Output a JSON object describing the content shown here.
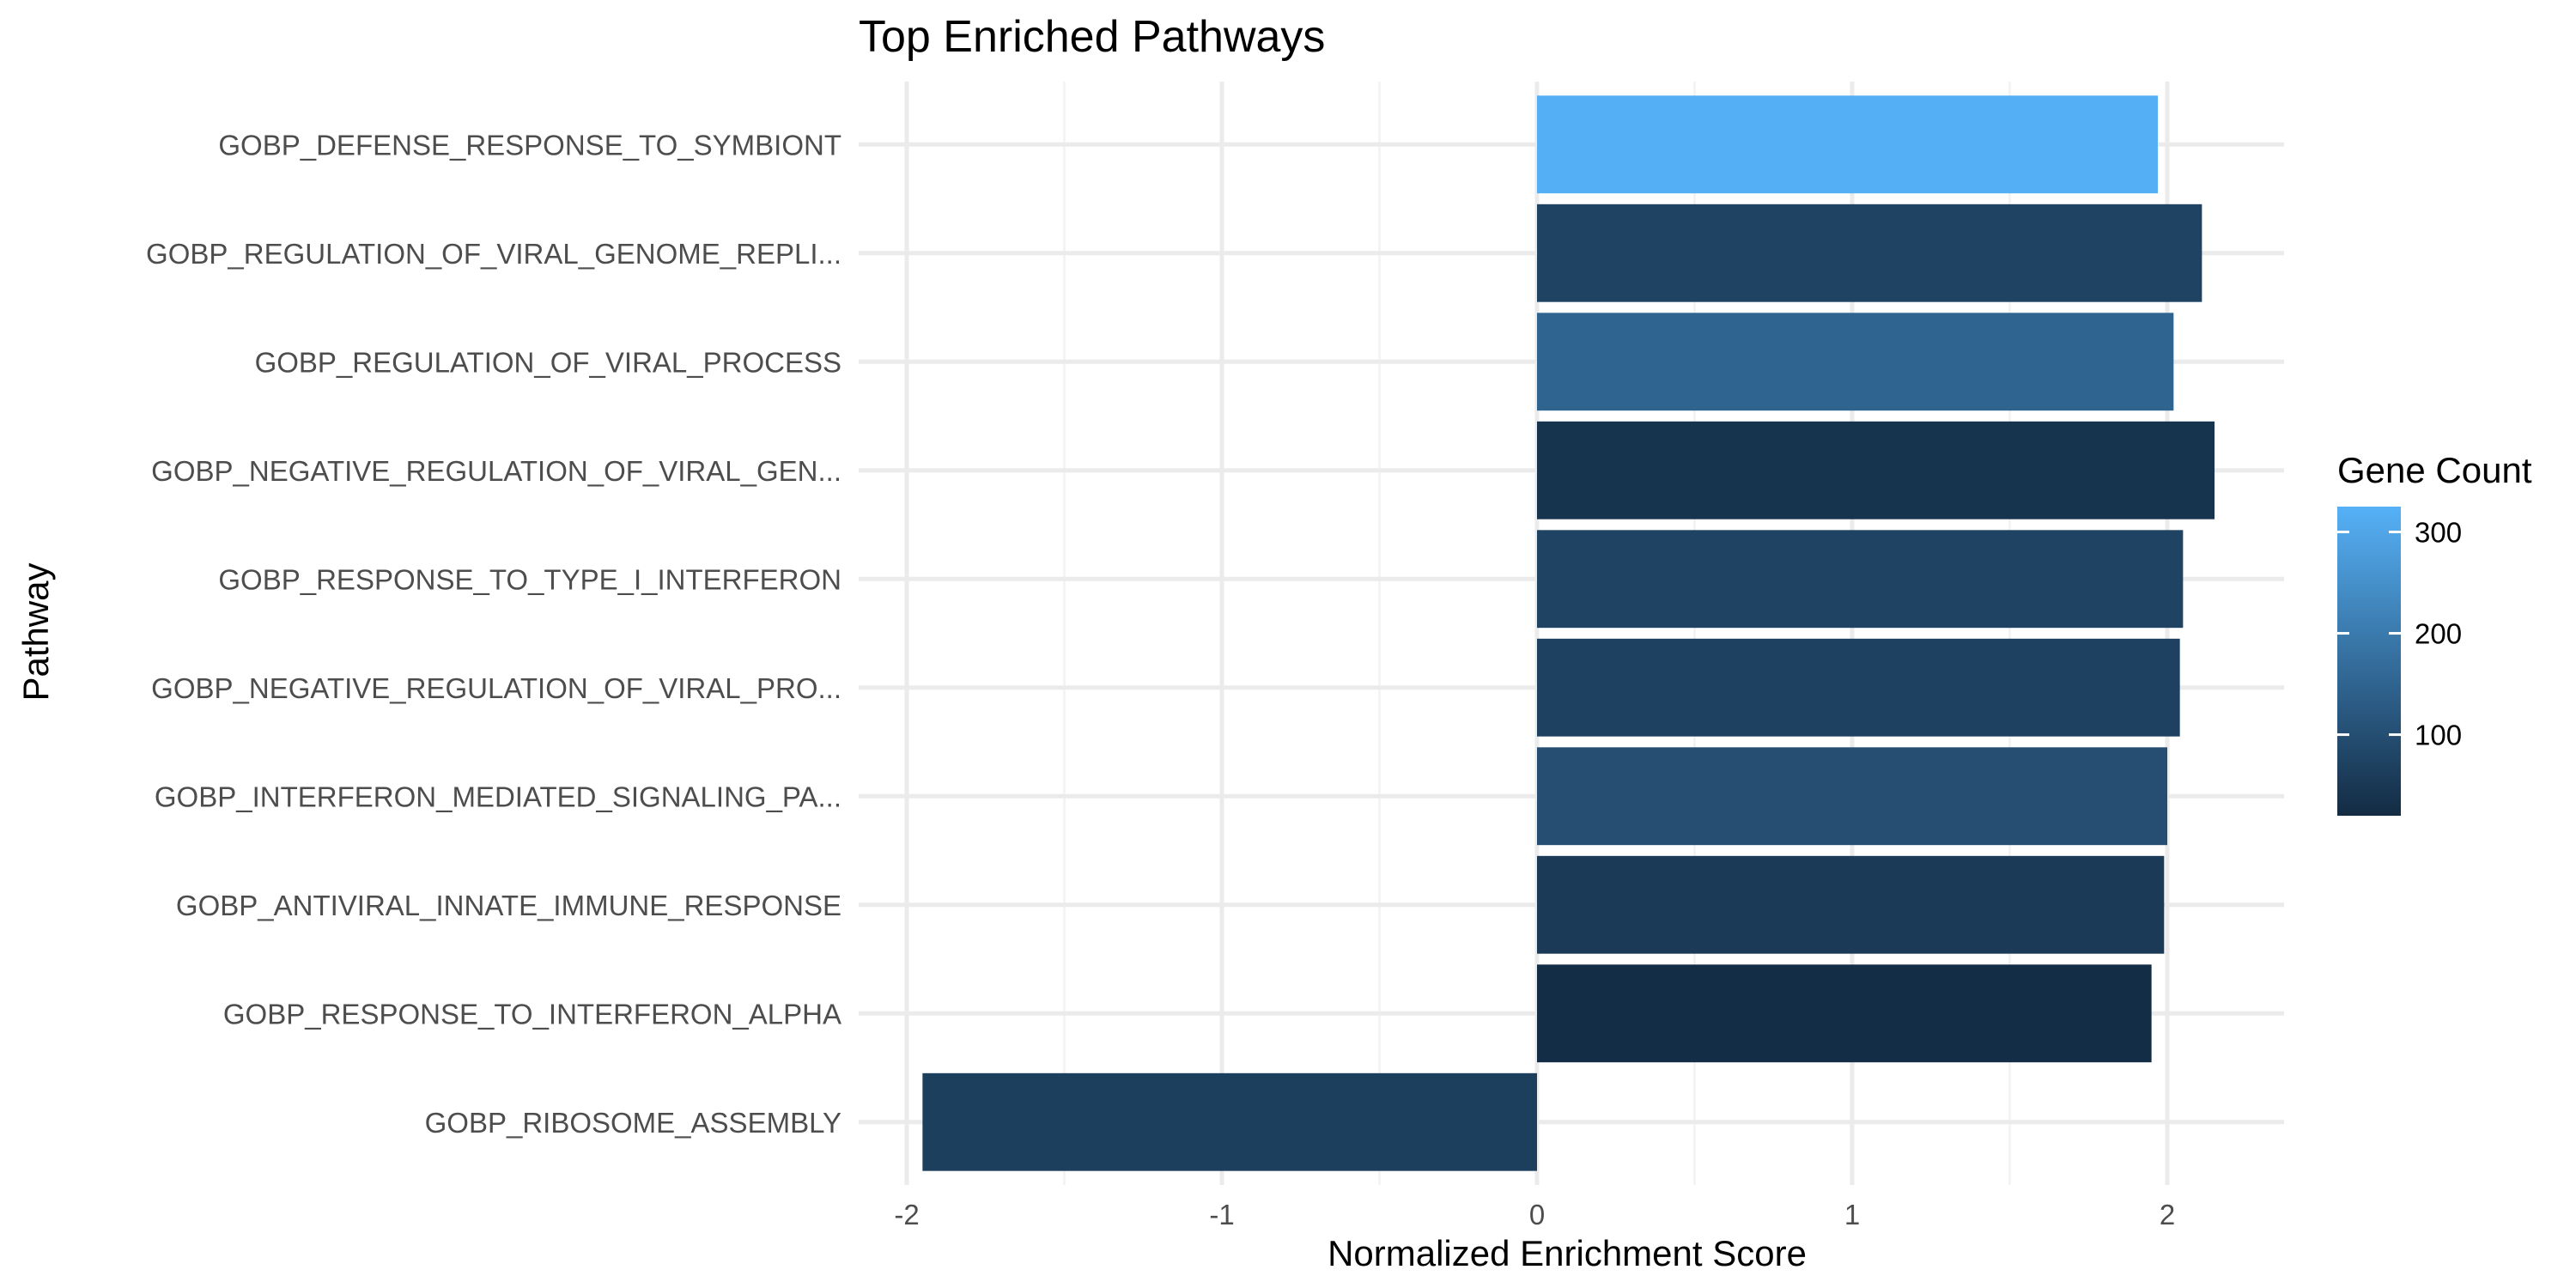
{
  "chart_data": {
    "type": "bar",
    "orientation": "horizontal",
    "title": "Top Enriched Pathways",
    "xlabel": "Normalized Enrichment Score",
    "ylabel": "Pathway",
    "xlim": [
      -2.2,
      2.35
    ],
    "x_ticks": [
      -2,
      -1,
      0,
      1,
      2
    ],
    "grid": true,
    "legend": {
      "title": "Gene Count",
      "position": "right",
      "type": "colorbar",
      "range": [
        20,
        325
      ],
      "ticks": [
        100,
        200,
        300
      ],
      "color_low": "#132B43",
      "color_high": "#56B1F7"
    },
    "categories": [
      "GOBP_DEFENSE_RESPONSE_TO_SYMBIONT",
      "GOBP_REGULATION_OF_VIRAL_GENOME_REPLI...",
      "GOBP_REGULATION_OF_VIRAL_PROCESS",
      "GOBP_NEGATIVE_REGULATION_OF_VIRAL_GEN...",
      "GOBP_RESPONSE_TO_TYPE_I_INTERFERON",
      "GOBP_NEGATIVE_REGULATION_OF_VIRAL_PRO...",
      "GOBP_INTERFERON_MEDIATED_SIGNALING_PA...",
      "GOBP_ANTIVIRAL_INNATE_IMMUNE_RESPONSE",
      "GOBP_RESPONSE_TO_INTERFERON_ALPHA",
      "GOBP_RIBOSOME_ASSEMBLY"
    ],
    "values": [
      1.97,
      2.11,
      2.02,
      2.15,
      2.05,
      2.04,
      2.0,
      1.99,
      1.95,
      -1.95
    ],
    "gene_counts": [
      320,
      75,
      150,
      40,
      75,
      70,
      100,
      55,
      25,
      65
    ]
  }
}
